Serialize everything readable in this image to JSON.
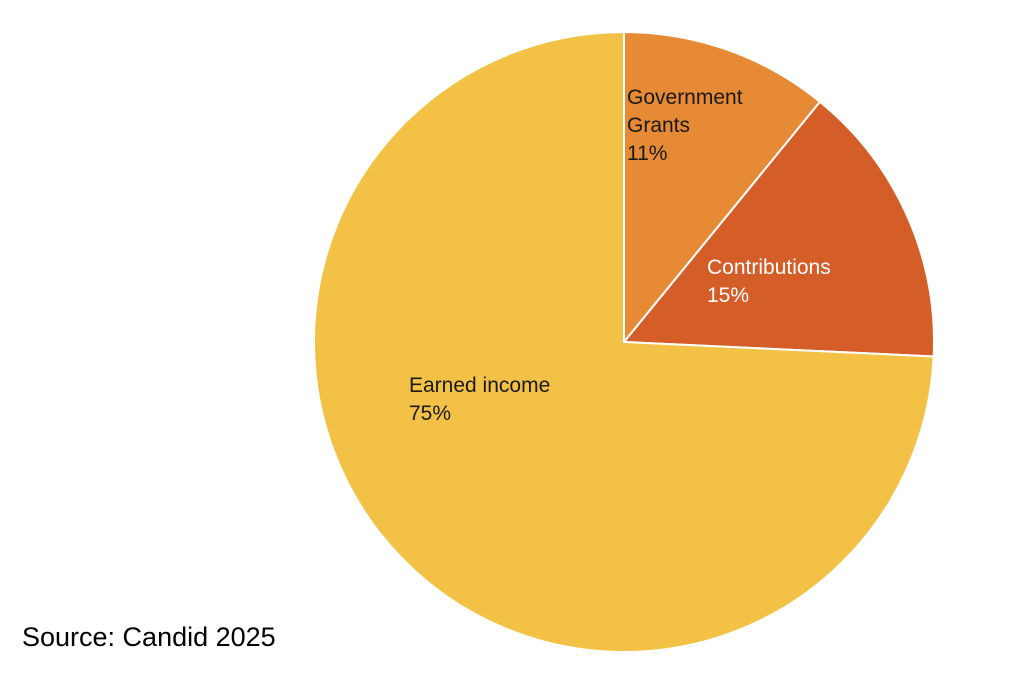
{
  "chart_data": {
    "type": "pie",
    "start_position": "top",
    "direction": "clockwise",
    "slices": [
      {
        "label": [
          "Government",
          "Grants"
        ],
        "value": 11,
        "value_label": "11%",
        "color": "#E68A35",
        "label_color": "#1a1a1a"
      },
      {
        "label": [
          "Contributions"
        ],
        "value": 15,
        "value_label": "15%",
        "color": "#D45D28",
        "label_color": "#ffffff"
      },
      {
        "label": [
          "Earned income"
        ],
        "value": 75,
        "value_label": "75%",
        "color": "#F3C145",
        "label_color": "#1a1a1a"
      }
    ]
  },
  "source": "Source: Candid 2025"
}
